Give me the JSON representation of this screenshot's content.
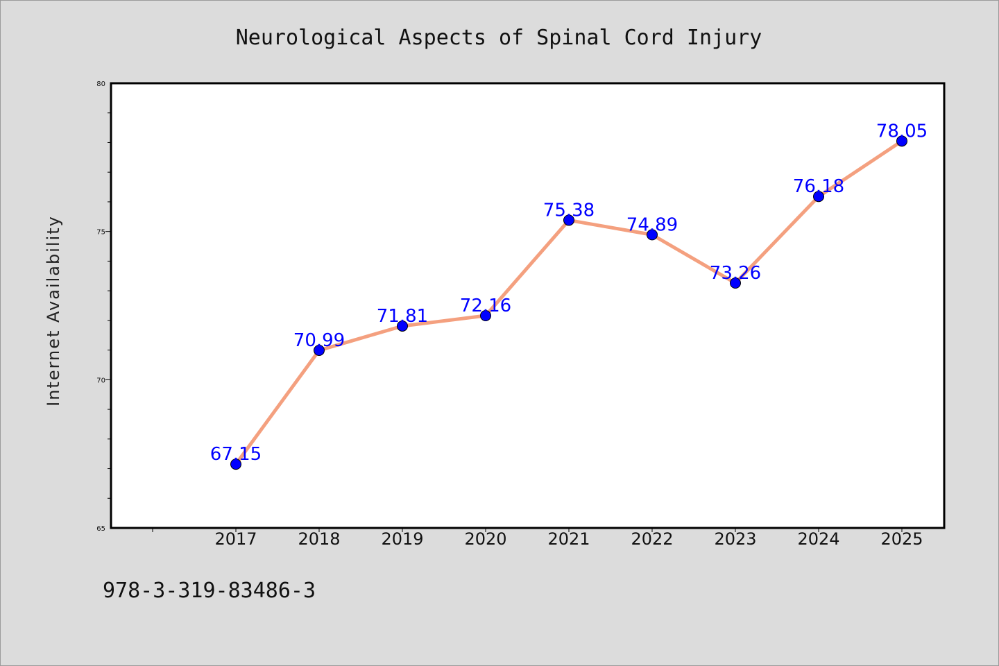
{
  "chart_data": {
    "type": "line",
    "title": "Neurological Aspects of Spinal Cord Injury",
    "xlabel": "",
    "ylabel": "Internet Availability",
    "categories": [
      "2017",
      "2018",
      "2019",
      "2020",
      "2021",
      "2022",
      "2023",
      "2024",
      "2025"
    ],
    "values": [
      67.15,
      70.99,
      71.81,
      72.16,
      75.38,
      74.89,
      73.26,
      76.18,
      78.05
    ],
    "data_labels": [
      "67.15",
      "70.99",
      "71.81",
      "72.16",
      "75.38",
      "74.89",
      "73.26",
      "76.18",
      "78.05"
    ],
    "ylim": [
      65,
      80
    ],
    "yticks": [
      "65",
      "70",
      "75",
      "80"
    ],
    "grid": false,
    "legend": "none",
    "line_color": "#f4a07f",
    "marker_color": "#0000ff"
  },
  "footer": {
    "isbn": "978-3-319-83486-3"
  }
}
